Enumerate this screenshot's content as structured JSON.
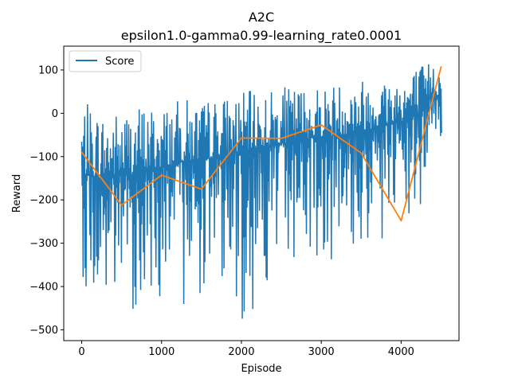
{
  "chart_data": {
    "type": "line",
    "title": "A2C",
    "subtitle": "epsilon1.0-gamma0.99-learning_rate0.0001",
    "xlabel": "Episode",
    "ylabel": "Reward",
    "xlim": [
      -225,
      4725
    ],
    "ylim": [
      -525,
      155
    ],
    "xticks": [
      0,
      1000,
      2000,
      3000,
      4000
    ],
    "yticks": [
      100,
      0,
      -100,
      -200,
      -300,
      -400,
      -500
    ],
    "xtick_labels": [
      "0",
      "1000",
      "2000",
      "3000",
      "4000"
    ],
    "ytick_labels": [
      "100",
      "0",
      "−100",
      "−200",
      "−300",
      "−400",
      "−500"
    ],
    "grid": false,
    "legend": {
      "position": "top-left",
      "entries": [
        "Score"
      ]
    },
    "colors": {
      "score": "#1f77b4",
      "average": "#ff7f0e",
      "axes": "#000000"
    },
    "series": [
      {
        "name": "Score",
        "color": "#1f77b4",
        "style": "noisy-band",
        "x_range": [
          0,
          4510
        ],
        "band": [
          {
            "x": 0,
            "upper": 30,
            "lower": -375,
            "mean": -140
          },
          {
            "x": 250,
            "upper": 5,
            "lower": -495,
            "mean": -150
          },
          {
            "x": 500,
            "upper": 10,
            "lower": -460,
            "mean": -145
          },
          {
            "x": 750,
            "upper": 25,
            "lower": -455,
            "mean": -135
          },
          {
            "x": 1000,
            "upper": 20,
            "lower": -430,
            "mean": -125
          },
          {
            "x": 1300,
            "upper": 35,
            "lower": -450,
            "mean": -110
          },
          {
            "x": 1500,
            "upper": 30,
            "lower": -420,
            "mean": -110
          },
          {
            "x": 1750,
            "upper": 40,
            "lower": -380,
            "mean": -95
          },
          {
            "x": 2000,
            "upper": 50,
            "lower": -490,
            "mean": -90
          },
          {
            "x": 2250,
            "upper": 55,
            "lower": -430,
            "mean": -80
          },
          {
            "x": 2500,
            "upper": 60,
            "lower": -360,
            "mean": -70
          },
          {
            "x": 2750,
            "upper": 65,
            "lower": -330,
            "mean": -60
          },
          {
            "x": 3000,
            "upper": 70,
            "lower": -340,
            "mean": -55
          },
          {
            "x": 3250,
            "upper": 75,
            "lower": -340,
            "mean": -50
          },
          {
            "x": 3500,
            "upper": 85,
            "lower": -330,
            "mean": -40
          },
          {
            "x": 3750,
            "upper": 90,
            "lower": -310,
            "mean": -30
          },
          {
            "x": 4000,
            "upper": 100,
            "lower": -290,
            "mean": -20
          },
          {
            "x": 4250,
            "upper": 115,
            "lower": -240,
            "mean": 0
          },
          {
            "x": 4400,
            "upper": 125,
            "lower": -40,
            "mean": 50
          },
          {
            "x": 4510,
            "upper": 110,
            "lower": -85,
            "mean": 30
          }
        ]
      },
      {
        "name": "",
        "color": "#ff7f0e",
        "style": "line",
        "x": [
          0,
          500,
          1000,
          1500,
          2000,
          2500,
          3000,
          3500,
          4000,
          4500
        ],
        "y": [
          -90,
          -212,
          -143,
          -175,
          -57,
          -58,
          -27,
          -92,
          -248,
          107
        ]
      }
    ]
  }
}
